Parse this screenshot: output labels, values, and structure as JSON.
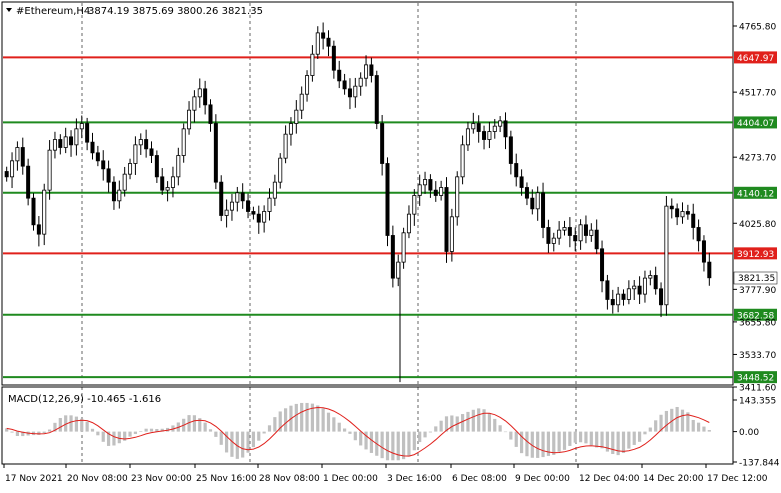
{
  "chart_data": [
    {
      "type": "candlestick",
      "title": "#Ethereum,H4",
      "ohlc_header": "3874.19 3875.69 3800.26 3821.35",
      "ylim": [
        3411.6,
        4830
      ],
      "y_ticks": [
        "4765.80",
        "4517.70",
        "4273.70",
        "4025.80",
        "3777.90",
        "3655.80",
        "3533.70",
        "3411.60"
      ],
      "current_price": "3821.35",
      "levels": [
        {
          "value": 4647.97,
          "label": "4647.97",
          "color": "#e0201b"
        },
        {
          "value": 4404.07,
          "label": "4404.07",
          "color": "#1f8a1f"
        },
        {
          "value": 4140.12,
          "label": "4140.12",
          "color": "#1f8a1f"
        },
        {
          "value": 3912.93,
          "label": "3912.93",
          "color": "#e0201b"
        },
        {
          "value": 3682.58,
          "label": "3682.58",
          "color": "#1f8a1f"
        },
        {
          "value": 3448.52,
          "label": "3448.52",
          "color": "#1f8a1f"
        }
      ],
      "x_labels": [
        "17 Nov 2021",
        "20 Nov 08:00",
        "23 Nov 00:00",
        "25 Nov 16:00",
        "28 Nov 08:00",
        "1 Dec 00:00",
        "3 Dec 16:00",
        "6 Dec 08:00",
        "9 Dec 00:00",
        "12 Dec 04:00",
        "14 Dec 20:00",
        "17 Dec 12:00"
      ],
      "close_series": [
        4200,
        4260,
        4310,
        4240,
        4120,
        4020,
        3985,
        4150,
        4300,
        4340,
        4310,
        4350,
        4320,
        4380,
        4400,
        4330,
        4290,
        4260,
        4230,
        4180,
        4110,
        4150,
        4210,
        4250,
        4320,
        4340,
        4305,
        4280,
        4200,
        4150,
        4160,
        4200,
        4280,
        4380,
        4450,
        4500,
        4530,
        4470,
        4400,
        4180,
        4055,
        4075,
        4105,
        4140,
        4110,
        4070,
        4060,
        4030,
        4070,
        4120,
        4180,
        4270,
        4360,
        4400,
        4450,
        4510,
        4580,
        4660,
        4740,
        4720,
        4690,
        4600,
        4560,
        4530,
        4500,
        4540,
        4570,
        4620,
        4580,
        4400,
        4250,
        3980,
        3820,
        3880,
        3990,
        4060,
        4130,
        4170,
        4190,
        4150,
        4130,
        4160,
        3920,
        4050,
        4200,
        4320,
        4380,
        4400,
        4370,
        4340,
        4370,
        4390,
        4410,
        4350,
        4250,
        4200,
        4160,
        4120,
        4080,
        4140,
        4010,
        3950,
        3970,
        4000,
        4010,
        3980,
        3960,
        4020,
        3980,
        4000,
        3930,
        3810,
        3740,
        3720,
        3760,
        3740,
        3780,
        3790,
        3760,
        3820,
        3830,
        3780,
        3720,
        4090,
        4080,
        4050,
        4070,
        4060,
        4010,
        3960,
        3880,
        3821.35
      ],
      "macd": {
        "label": "MACD(12,26,9) -10.465 -1.616",
        "ylim": [
          -137.844,
          143.355
        ],
        "y_ticks": [
          "143.355",
          "0.00",
          "-137.844"
        ],
        "signal_color": "#e0201b",
        "histogram_color": "#c0c0c0"
      }
    }
  ]
}
